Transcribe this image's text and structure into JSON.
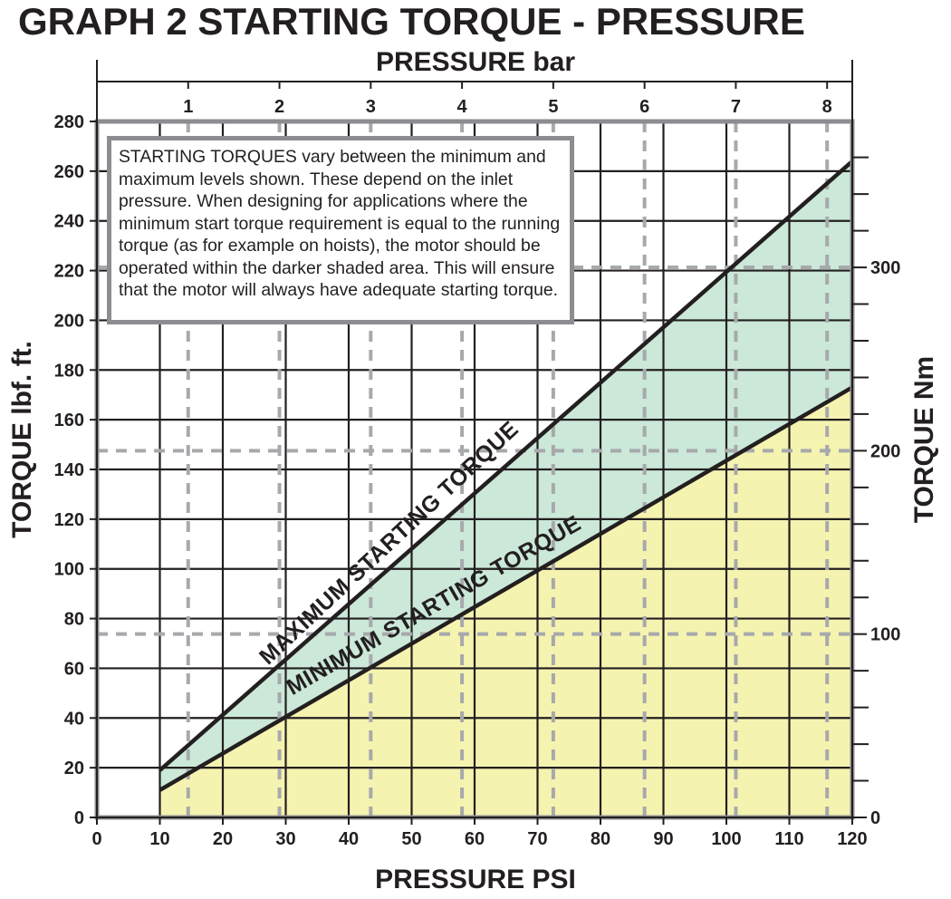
{
  "chart_data": {
    "type": "area",
    "title": "GRAPH 2 STARTING TORQUE - PRESSURE",
    "xlabel": "PRESSURE PSI",
    "ylabel": "TORQUE lbf. ft.",
    "x2label": "PRESSURE bar",
    "y2label": "TORQUE Nm",
    "xlim": [
      0,
      120
    ],
    "ylim": [
      0,
      280
    ],
    "x_ticks": [
      0,
      10,
      20,
      30,
      40,
      50,
      60,
      70,
      80,
      90,
      100,
      110,
      120
    ],
    "y_ticks": [
      0,
      20,
      40,
      60,
      80,
      100,
      120,
      140,
      160,
      180,
      200,
      220,
      240,
      260,
      280
    ],
    "x2_ticks": [
      {
        "label": "1",
        "psi": 14.5
      },
      {
        "label": "2",
        "psi": 29
      },
      {
        "label": "3",
        "psi": 43.5
      },
      {
        "label": "4",
        "psi": 58
      },
      {
        "label": "5",
        "psi": 72.5
      },
      {
        "label": "6",
        "psi": 87
      },
      {
        "label": "7",
        "psi": 101.5
      },
      {
        "label": "8",
        "psi": 116
      }
    ],
    "y2_ticks": [
      {
        "label": "0",
        "lbf": 0
      },
      {
        "label": "100",
        "lbf": 73.8
      },
      {
        "label": "200",
        "lbf": 147.5
      },
      {
        "label": "300",
        "lbf": 221.3
      }
    ],
    "series": [
      {
        "name": "MAXIMUM STARTING TORQUE",
        "x": [
          10,
          120
        ],
        "y": [
          19,
          264
        ],
        "fill": "#cbe8d8"
      },
      {
        "name": "MINIMUM STARTING TORQUE",
        "x": [
          10,
          120
        ],
        "y": [
          11,
          173
        ],
        "fill": "#f5f3b0"
      }
    ],
    "annotation": "STARTING TORQUES vary between the minimum and maximum levels shown. These depend on the inlet pressure. When designing for applications where the minimum start torque requirement is equal to the running torque (as for example on hoists), the motor should be operated within the darker shaded area. This will ensure that the motor will always have adequate starting torque."
  }
}
